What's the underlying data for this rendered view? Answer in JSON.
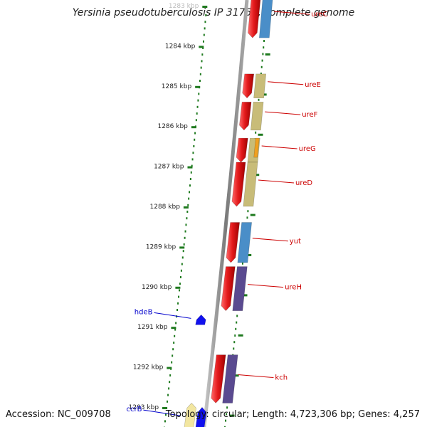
{
  "title": "Yersinia pseudotuberculosis IP 31758, complete genome",
  "footer": {
    "accession": "Accession: NC_009708",
    "summary": "Topology: circular; Length: 4,723,306 bp; Genes: 4,257"
  },
  "colors": {
    "backbone": "#8a8a8a",
    "ticks": "#1f7a1f",
    "cds_red": "#e41a1c",
    "label_red": "#cc0000",
    "label_blue": "#0000cc"
  },
  "tick_labels": [
    {
      "text": "1283 kbp",
      "kbp": 1283
    },
    {
      "text": "1284 kbp",
      "kbp": 1284
    },
    {
      "text": "1285 kbp",
      "kbp": 1285
    },
    {
      "text": "1286 kbp",
      "kbp": 1286
    },
    {
      "text": "1287 kbp",
      "kbp": 1287
    },
    {
      "text": "1288 kbp",
      "kbp": 1288
    },
    {
      "text": "1289 kbp",
      "kbp": 1289
    },
    {
      "text": "1290 kbp",
      "kbp": 1290
    },
    {
      "text": "1291 kbp",
      "kbp": 1291
    },
    {
      "text": "1292 kbp",
      "kbp": 1292
    },
    {
      "text": "1293 kbp",
      "kbp": 1293
    }
  ],
  "genes": [
    {
      "label": "ureC",
      "strand": "plus",
      "color": "#4a8ec8",
      "start": 1282.7,
      "end": 1283.8
    },
    {
      "label": "ureE",
      "strand": "plus",
      "color": "#c8bc78",
      "start": 1284.7,
      "end": 1285.3
    },
    {
      "label": "ureF",
      "strand": "plus",
      "color": "#c8bc78",
      "start": 1285.4,
      "end": 1286.1
    },
    {
      "label": "ureG",
      "strand": "plus",
      "color": "#c8bc78",
      "start": 1286.3,
      "end": 1286.9,
      "accent": "#f0a020"
    },
    {
      "label": "ureD",
      "strand": "plus",
      "color": "#c8bc78",
      "start": 1286.9,
      "end": 1288.0
    },
    {
      "label": "yut",
      "strand": "plus",
      "color": "#4a8ec8",
      "start": 1288.4,
      "end": 1289.4
    },
    {
      "label": "ureH",
      "strand": "plus",
      "color": "#5a4a90",
      "start": 1289.5,
      "end": 1290.6
    },
    {
      "label": "kch",
      "strand": "plus",
      "color": "#5a4a90",
      "start": 1291.7,
      "end": 1292.9
    },
    {
      "label": "hdeB",
      "strand": "minus",
      "color": "#1010ee",
      "start": 1290.7,
      "end": 1290.95
    },
    {
      "label": "ccrB",
      "strand": "minus",
      "color": "#f2e6a0",
      "start": 1292.9,
      "end": 1293.6
    }
  ]
}
